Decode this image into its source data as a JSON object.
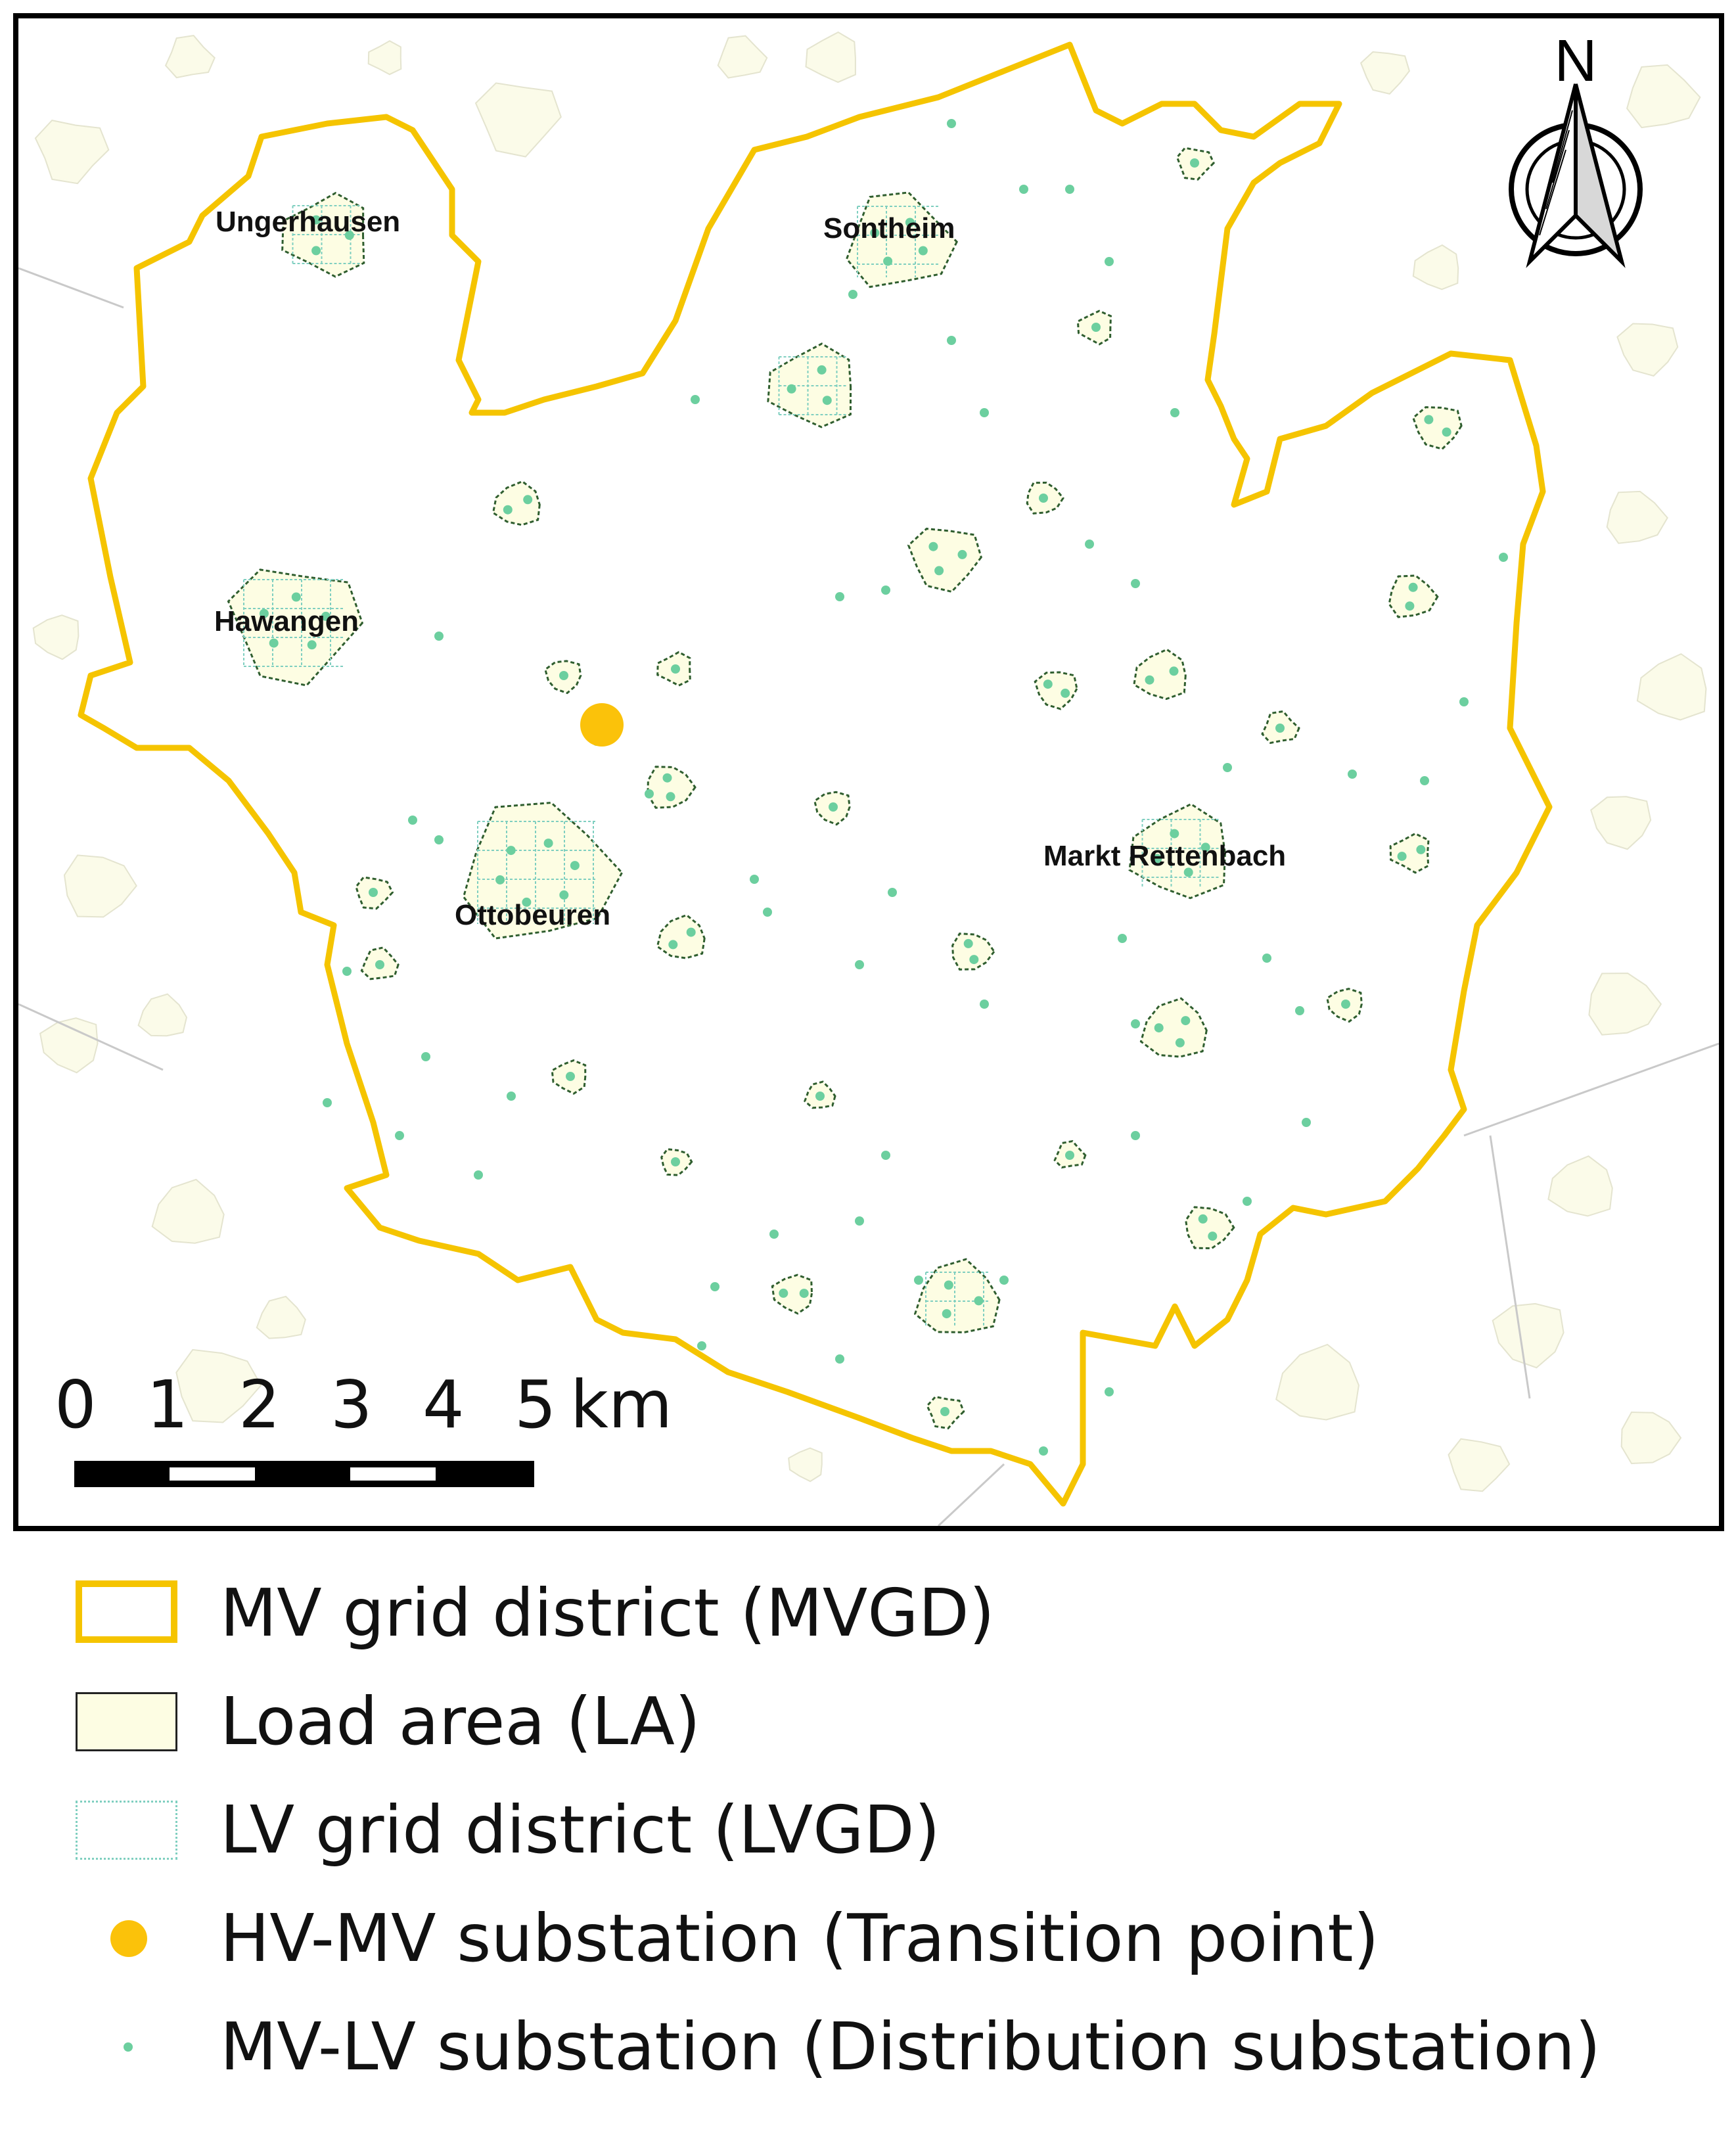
{
  "map": {
    "towns": [
      {
        "name": "Ungerhausen"
      },
      {
        "name": "Sontheim"
      },
      {
        "name": "Hawangen"
      },
      {
        "name": "Ottobeuren"
      },
      {
        "name": "Markt Rettenbach"
      }
    ],
    "north_arrow_label": "N",
    "scale_bar": {
      "ticks": [
        "0",
        "1",
        "2",
        "3",
        "4",
        "5"
      ],
      "unit": "km"
    },
    "colors": {
      "mvgd_boundary": "#f5c400",
      "load_area_fill": "#fdfde3",
      "load_area_outline": "#2f5e2f",
      "lvgd_outline": "#7fcfc0",
      "hv_mv_substation": "#fbc20a",
      "mv_lv_substation": "#6ccf9f",
      "background_settlement": "#fbfbe9",
      "background_lines": "#c9c9c9"
    }
  },
  "legend": {
    "items": [
      {
        "symbol": "mvgd-outline",
        "label": "MV grid district (MVGD)"
      },
      {
        "symbol": "load-area-fill",
        "label": "Load area (LA)"
      },
      {
        "symbol": "lvgd-outline",
        "label": "LV grid district (LVGD)"
      },
      {
        "symbol": "hv-mv-substation-dot",
        "label": "HV-MV substation (Transition point)"
      },
      {
        "symbol": "mv-lv-substation-dot",
        "label": "MV-LV substation (Distribution substation)"
      }
    ]
  }
}
